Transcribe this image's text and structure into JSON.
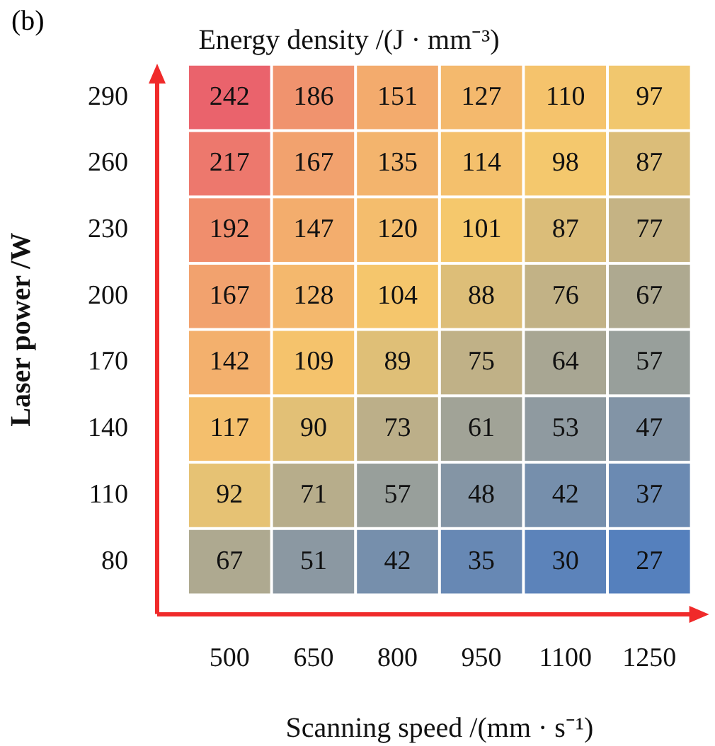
{
  "chart_data": {
    "type": "heatmap",
    "title": "Energy density /(J · mm⁻³)",
    "xlabel": "Scanning speed /(mm · s⁻¹)",
    "ylabel": "Laser power /W",
    "annotations": [
      "(b)"
    ],
    "categories": [
      "500",
      "650",
      "800",
      "950",
      "1100",
      "1250"
    ],
    "y_categories": [
      "290",
      "260",
      "230",
      "200",
      "170",
      "140",
      "110",
      "80"
    ],
    "colors": [
      "#5580bd",
      "#f5c96c",
      "#f2a06e",
      "#ea636c"
    ],
    "cells": [
      [
        242,
        186,
        151,
        127,
        110,
        97
      ],
      [
        217,
        167,
        135,
        114,
        98,
        87
      ],
      [
        192,
        147,
        120,
        101,
        87,
        77
      ],
      [
        167,
        128,
        104,
        88,
        76,
        67
      ],
      [
        142,
        109,
        89,
        75,
        64,
        57
      ],
      [
        117,
        90,
        73,
        61,
        53,
        47
      ],
      [
        92,
        71,
        57,
        48,
        42,
        37
      ],
      [
        67,
        51,
        42,
        35,
        30,
        27
      ]
    ],
    "data_labels": true
  }
}
